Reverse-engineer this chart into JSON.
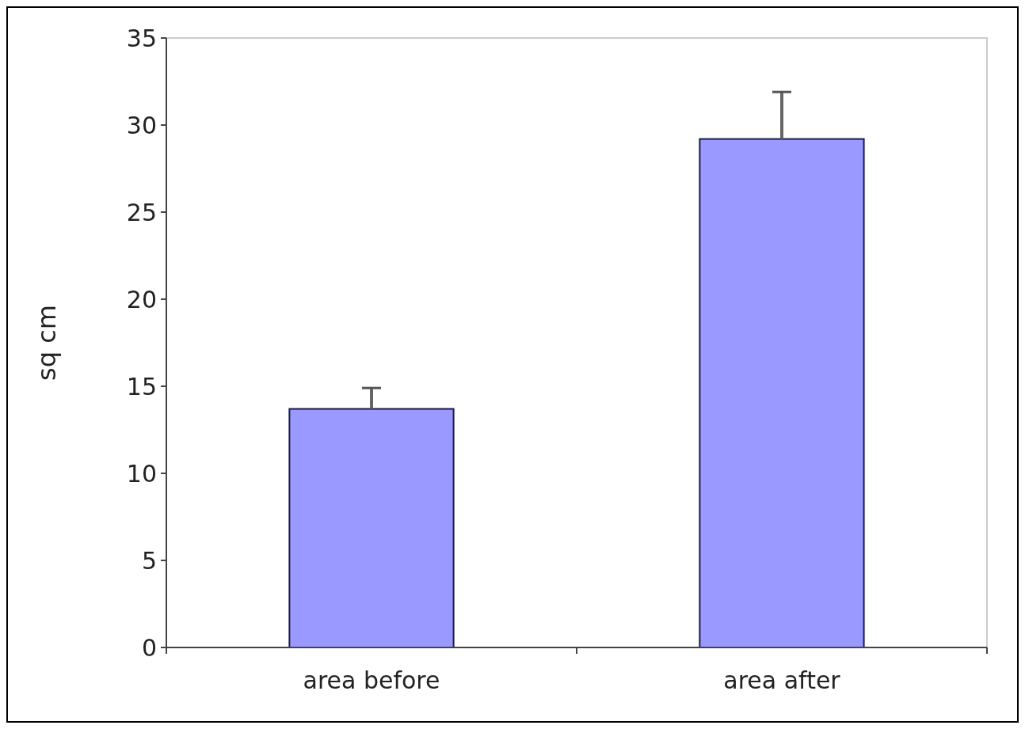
{
  "chart_data": {
    "type": "bar",
    "ylabel": "sq cm",
    "categories": [
      "area before",
      "area after"
    ],
    "values": [
      13.7,
      29.2
    ],
    "color": "#9999ff",
    "errors": [
      [
        13.7,
        14.9
      ],
      [
        29.2,
        31.9
      ]
    ],
    "ylim": [
      0,
      35
    ],
    "yticks": [
      0,
      5,
      10,
      15,
      20,
      25,
      30,
      35
    ],
    "grid": false
  }
}
